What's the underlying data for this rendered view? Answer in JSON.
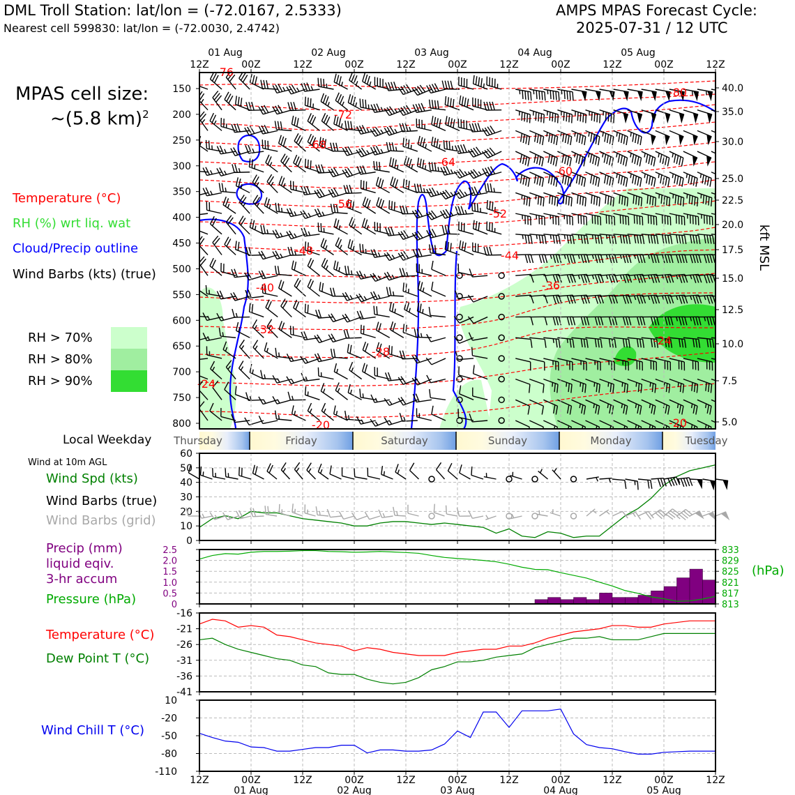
{
  "header": {
    "station": "DML Troll Station: lat/lon = (-72.0167, 2.5333)",
    "nearest": "Nearest cell 599830: lat/lon = (-72.0030, 2.4742)",
    "cycle_line1": "AMPS MPAS Forecast Cycle:",
    "cycle_line2": "2025-07-31 / 12 UTC"
  },
  "cell_size": {
    "line1": "MPAS cell size:",
    "line2": "~(5.8 km)",
    "exp": "2"
  },
  "colors": {
    "temperature": "#ff0000",
    "rh_legend": "#33dd33",
    "cloud": "#0000ff",
    "barb": "#000000",
    "barb_grid": "#a8a8a8",
    "wind_speed": "#008000",
    "precip": "#800080",
    "pressure": "#00aa00",
    "dewpoint": "#008000",
    "windchill": "#0000ee",
    "rh70": "#ccffcc",
    "rh80": "#a0eea0",
    "rh90": "#33dd33"
  },
  "legend": {
    "temperature": "Temperature (°C)",
    "rh": "RH (%) wrt liq. wat",
    "cloud": "Cloud/Precip outline",
    "barbs": "Wind Barbs (kts) (true)",
    "rh70": "RH > 70%",
    "rh80": "RH > 80%",
    "rh90": "RH > 90%"
  },
  "time_axis": {
    "top_ticks": [
      "12Z",
      "00Z",
      "12Z",
      "00Z",
      "12Z",
      "00Z",
      "12Z",
      "00Z",
      "12Z",
      "00Z",
      "12Z"
    ],
    "top_dates": [
      "01 Aug",
      "02 Aug",
      "03 Aug",
      "04 Aug",
      "05 Aug"
    ],
    "bottom_ticks": [
      "12Z",
      "00Z",
      "12Z",
      "00Z",
      "12Z",
      "00Z",
      "12Z",
      "00Z",
      "12Z",
      "00Z",
      "12Z"
    ],
    "bottom_dates": [
      "01 Aug",
      "02 Aug",
      "03 Aug",
      "04 Aug",
      "05 Aug"
    ]
  },
  "weekday": {
    "label": "Local Weekday",
    "days": [
      "Thursday",
      "Friday",
      "Saturday",
      "Sunday",
      "Monday",
      "Tuesday"
    ]
  },
  "bottom_labels": {
    "wind_title": "Wind at 10m AGL",
    "wind_speed": "Wind Spd (kts)",
    "barbs_true": "Wind Barbs (true)",
    "barbs_grid": "Wind Barbs (grid)",
    "precip_l1": "Precip (mm)",
    "precip_l2": "liquid eqiv.",
    "precip_l3": "3-hr accum",
    "pressure": "Pressure (hPa)",
    "pressure_unit": "(hPa)",
    "temperature": "Temperature (°C)",
    "dewpoint": "Dew Point T (°C)",
    "windchill": "Wind Chill T (°C)"
  },
  "chart_data": [
    {
      "type": "heatmap",
      "ylabel_right": "kft MSL",
      "y_pressure_ticks": [
        "150",
        "200",
        "250",
        "300",
        "350",
        "400",
        "450",
        "500",
        "550",
        "600",
        "650",
        "700",
        "750",
        "800"
      ],
      "y_height_ticks": [
        "40.0",
        "35.0",
        "30.0",
        "25.0",
        "22.5",
        "20.0",
        "17.5",
        "15.0",
        "12.5",
        "10.0",
        "7.5",
        "5.0"
      ],
      "temperature_contour_labels": [
        "-76",
        "-72",
        "-68",
        "-64",
        "-60",
        "-56",
        "-52",
        "-48",
        "-44",
        "-40",
        "-36",
        "-32",
        "-28",
        "-24",
        "-24",
        "-20",
        "-20",
        "-80"
      ],
      "notes": "Time-height cross-section: red dashed isotherms, green RH shading, blue cloud outline, wind barbs"
    },
    {
      "type": "line",
      "title": "Wind at 10m AGL",
      "x_hours": [
        0,
        6,
        12,
        18,
        24,
        30,
        36,
        42,
        48,
        54,
        60,
        66,
        72,
        78,
        84,
        90,
        96,
        102,
        108,
        114,
        120,
        126,
        132,
        138,
        144,
        150,
        156,
        162,
        168,
        174,
        180,
        186,
        192,
        198,
        204,
        210,
        216,
        222,
        228,
        234,
        240
      ],
      "series": [
        {
          "name": "Wind Spd (kts)",
          "values": [
            9,
            15,
            17,
            15,
            20,
            19,
            19,
            17,
            15,
            14,
            13,
            12,
            10,
            10,
            12,
            13,
            13,
            12,
            11,
            12,
            11,
            10,
            9,
            5,
            8,
            3,
            2,
            6,
            5,
            2,
            3,
            3,
            10,
            17,
            22,
            29,
            38,
            44,
            48,
            50,
            52
          ]
        }
      ],
      "ylim": [
        0,
        60
      ],
      "yticks": [
        "0",
        "10",
        "20",
        "30",
        "40",
        "50",
        "60"
      ]
    },
    {
      "type": "bar",
      "x_hours": [
        0,
        6,
        12,
        18,
        24,
        30,
        36,
        42,
        48,
        54,
        60,
        66,
        72,
        78,
        84,
        90,
        96,
        102,
        108,
        114,
        120,
        126,
        132,
        138,
        144,
        150,
        156,
        162,
        168,
        174,
        180,
        186,
        192,
        198,
        204,
        210,
        216,
        222,
        228,
        234,
        240
      ],
      "series": [
        {
          "name": "Precip (mm)",
          "values": [
            0,
            0,
            0,
            0,
            0,
            0,
            0,
            0,
            0,
            0,
            0,
            0,
            0,
            0,
            0,
            0,
            0,
            0,
            0,
            0,
            0,
            0,
            0,
            0,
            0,
            0,
            0,
            0.2,
            0.3,
            0.2,
            0.3,
            0.2,
            0.5,
            0.3,
            0.3,
            0.4,
            0.6,
            0.8,
            1.2,
            1.6,
            1.1
          ]
        },
        {
          "name": "Pressure (hPa)",
          "values": [
            829.5,
            830.8,
            831.5,
            831.3,
            832.0,
            832.3,
            832.3,
            832.4,
            832.6,
            832.6,
            832.3,
            832.2,
            832.0,
            832.1,
            832.3,
            832.1,
            831.9,
            831.6,
            830.8,
            830.1,
            829.7,
            829.4,
            829.0,
            828.5,
            827.6,
            826.5,
            825.7,
            825.6,
            824.5,
            823.5,
            822.5,
            821.0,
            819.6,
            817.9,
            816.9,
            815.6,
            814.9,
            814.0,
            814.1,
            814.8,
            815.8
          ]
        }
      ],
      "ylim_left": [
        0,
        2.5
      ],
      "yticks_left": [
        "0",
        "0.5",
        "1.0",
        "1.5",
        "2.0",
        "2.5"
      ],
      "ylim_right": [
        813,
        833
      ],
      "yticks_right": [
        "833",
        "829",
        "825",
        "821",
        "817",
        "813"
      ]
    },
    {
      "type": "line",
      "x_hours": [
        0,
        6,
        12,
        18,
        24,
        30,
        36,
        42,
        48,
        54,
        60,
        66,
        72,
        78,
        84,
        90,
        96,
        102,
        108,
        114,
        120,
        126,
        132,
        138,
        144,
        150,
        156,
        162,
        168,
        174,
        180,
        186,
        192,
        198,
        204,
        210,
        216,
        222,
        228,
        234,
        240
      ],
      "series": [
        {
          "name": "Temperature (°C)",
          "values": [
            -19.5,
            -18.0,
            -18.5,
            -20.5,
            -20.0,
            -20.5,
            -23.0,
            -23.5,
            -24.5,
            -25.5,
            -26.0,
            -26.5,
            -28.0,
            -27.0,
            -27.5,
            -28.5,
            -29.0,
            -29.5,
            -29.5,
            -29.5,
            -28.5,
            -28.0,
            -27.5,
            -27.5,
            -26.5,
            -26.5,
            -25.5,
            -24.0,
            -23.0,
            -22.0,
            -21.5,
            -21.0,
            -20.0,
            -20.0,
            -20.5,
            -20.5,
            -19.5,
            -19.0,
            -18.5,
            -18.5,
            -18.5
          ]
        },
        {
          "name": "Dew Point T (°C)",
          "values": [
            -24.5,
            -24.0,
            -26.0,
            -27.5,
            -28.5,
            -29.5,
            -30.5,
            -31.0,
            -32.5,
            -33.0,
            -35.0,
            -35.5,
            -35.5,
            -37.0,
            -38.0,
            -38.5,
            -38.0,
            -36.5,
            -34.0,
            -33.0,
            -31.5,
            -31.5,
            -31.0,
            -30.0,
            -29.5,
            -29.0,
            -27.0,
            -26.0,
            -25.0,
            -24.0,
            -24.0,
            -23.5,
            -24.5,
            -24.5,
            -24.5,
            -23.5,
            -22.5,
            -22.5,
            -22.5,
            -22.5,
            -22.5
          ]
        }
      ],
      "ylim": [
        -41,
        -16
      ],
      "yticks": [
        "-16",
        "-21",
        "-26",
        "-31",
        "-36",
        "-41"
      ]
    },
    {
      "type": "line",
      "x_hours": [
        0,
        6,
        12,
        18,
        24,
        30,
        36,
        42,
        48,
        54,
        60,
        66,
        72,
        78,
        84,
        90,
        96,
        102,
        108,
        114,
        120,
        126,
        132,
        138,
        144,
        150,
        156,
        162,
        168,
        174,
        180,
        186,
        192,
        198,
        204,
        210,
        216,
        222,
        228,
        234,
        240
      ],
      "series": [
        {
          "name": "Wind Chill T (°C)",
          "values": [
            -46,
            -53,
            -59,
            -61,
            -69,
            -70,
            -76,
            -76,
            -73,
            -70,
            -70,
            -66,
            -66,
            -79,
            -74,
            -74,
            -76,
            -76,
            -74,
            -64,
            -42,
            -53,
            -10,
            -10,
            -36,
            -8,
            -8,
            -8,
            -5,
            -47,
            -65,
            -70,
            -72,
            -77,
            -81,
            -81,
            -78,
            -77,
            -76,
            -76,
            -76
          ]
        }
      ],
      "ylim": [
        -110,
        10
      ],
      "yticks": [
        "10",
        "-20",
        "-50",
        "-80",
        "-110"
      ]
    }
  ]
}
